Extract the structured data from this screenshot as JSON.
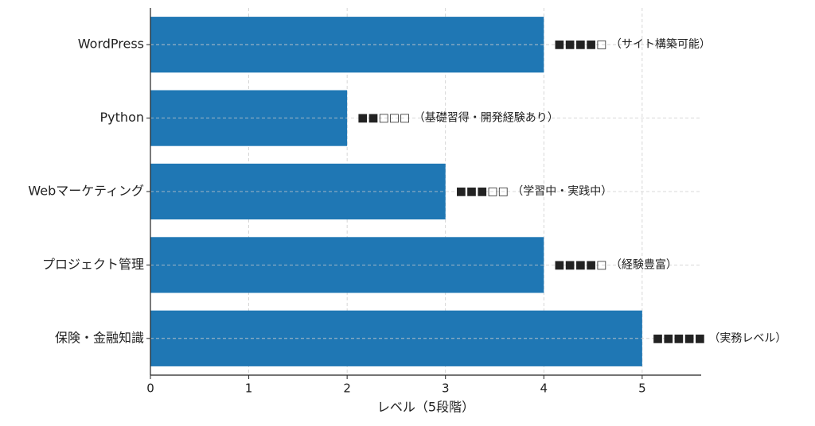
{
  "chart_data": {
    "type": "barh",
    "categories": [
      "WordPress",
      "Python",
      "Webマーケティング",
      "プロジェクト管理",
      "保険・金融知識"
    ],
    "values": [
      4,
      2,
      3,
      4,
      5
    ],
    "value_labels": [
      "■■■■□ （サイト構築可能）",
      "■■□□□ （基礎習得・開発経験あり）",
      "■■■□□ （学習中・実践中）",
      "■■■■□ （経験豊富）",
      "■■■■■ （実務レベル）"
    ],
    "color": "#1f77b4",
    "x_label": "レベル（5段階）",
    "xlim": [
      0,
      5.6
    ],
    "xticks": [
      0,
      1,
      2,
      3,
      4,
      5
    ],
    "grid": true
  }
}
